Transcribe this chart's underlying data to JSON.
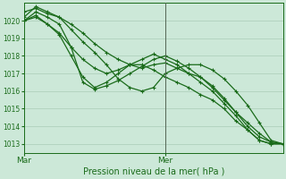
{
  "xlabel": "Pression niveau de la mer( hPa )",
  "bg_color": "#cce8d8",
  "line_color": "#1a6b1a",
  "grid_color": "#aaccb8",
  "xtick_labels": [
    "Mar",
    "Mer"
  ],
  "xtick_positions": [
    0,
    12
  ],
  "xlim": [
    0,
    22
  ],
  "ylim": [
    1012.5,
    1021.0
  ],
  "yticks": [
    1013,
    1014,
    1015,
    1016,
    1017,
    1018,
    1019,
    1020
  ],
  "series": [
    [
      1020.5,
      1020.7,
      1020.4,
      1020.2,
      1019.8,
      1019.3,
      1018.7,
      1018.2,
      1017.8,
      1017.5,
      1017.3,
      1017.5,
      1017.6,
      1017.3,
      1017.0,
      1016.8,
      1016.2,
      1015.5,
      1014.8,
      1014.2,
      1013.6,
      1013.1,
      1013.0
    ],
    [
      1020.2,
      1020.8,
      1020.5,
      1020.2,
      1019.5,
      1018.8,
      1018.2,
      1017.5,
      1016.7,
      1016.2,
      1016.0,
      1016.2,
      1017.0,
      1017.3,
      1017.5,
      1017.5,
      1017.2,
      1016.7,
      1016.0,
      1015.2,
      1014.2,
      1013.2,
      1013.0
    ],
    [
      1020.0,
      1020.5,
      1020.2,
      1019.8,
      1018.5,
      1016.5,
      1016.1,
      1016.3,
      1016.6,
      1017.0,
      1017.4,
      1017.8,
      1018.0,
      1017.7,
      1017.3,
      1016.8,
      1016.3,
      1015.6,
      1014.8,
      1014.0,
      1013.4,
      1013.1,
      1013.0
    ],
    [
      1020.0,
      1020.3,
      1019.8,
      1019.2,
      1018.0,
      1016.8,
      1016.2,
      1016.5,
      1017.0,
      1017.5,
      1017.8,
      1018.1,
      1017.8,
      1017.5,
      1017.0,
      1016.5,
      1016.0,
      1015.3,
      1014.6,
      1013.8,
      1013.2,
      1013.0,
      1013.0
    ],
    [
      1020.0,
      1020.2,
      1019.8,
      1019.3,
      1018.5,
      1017.8,
      1017.3,
      1017.0,
      1017.2,
      1017.5,
      1017.5,
      1017.2,
      1016.8,
      1016.5,
      1016.2,
      1015.8,
      1015.5,
      1015.0,
      1014.3,
      1013.8,
      1013.2,
      1013.0,
      1013.0
    ]
  ],
  "n_points": 23,
  "marker": "+",
  "marker_size": 3,
  "line_width": 0.9,
  "vline_x": 12,
  "vline_color": "#556655"
}
